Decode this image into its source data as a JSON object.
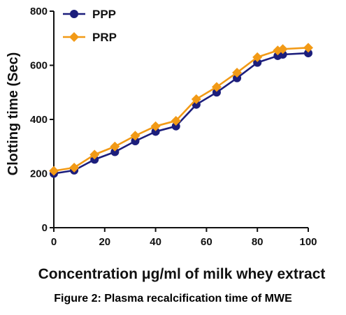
{
  "caption": "Figure 2: Plasma recalcification time of MWE",
  "chart_data": {
    "type": "line",
    "title": "",
    "xlabel": "Concentration μg/ml of milk whey extract",
    "ylabel": "Clotting time (Sec)",
    "xlim": [
      0,
      100
    ],
    "ylim": [
      0,
      800
    ],
    "xticks": [
      0,
      20,
      40,
      60,
      80,
      100
    ],
    "yticks": [
      0,
      200,
      400,
      600,
      800
    ],
    "legend_position": "top-left",
    "x": [
      0,
      8,
      16,
      24,
      32,
      40,
      48,
      56,
      64,
      72,
      80,
      88,
      90,
      100
    ],
    "series": [
      {
        "name": "PPP",
        "marker": "circle",
        "color": "#1c1e7c",
        "values": [
          200,
          212,
          252,
          280,
          320,
          355,
          375,
          455,
          500,
          553,
          610,
          635,
          640,
          645
        ]
      },
      {
        "name": "PRP",
        "marker": "diamond",
        "color": "#f29a16",
        "values": [
          210,
          222,
          270,
          300,
          340,
          375,
          395,
          475,
          520,
          573,
          630,
          655,
          660,
          665
        ]
      }
    ]
  }
}
